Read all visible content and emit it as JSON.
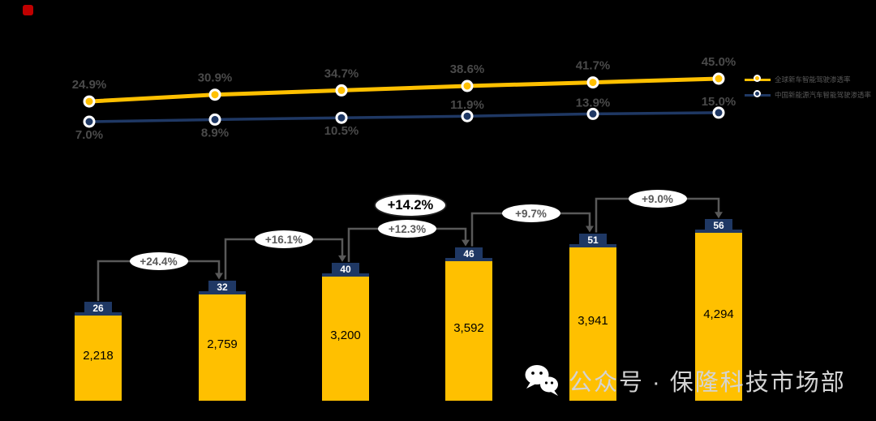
{
  "page": {
    "background": "#000000"
  },
  "colors": {
    "yellow": "#FFC000",
    "navy": "#1F3864",
    "point_label_gray": "#4A4A4A",
    "connector_gray": "#595959",
    "badge_bg": "#FFFFFF",
    "cap_text": "#FFFFFF",
    "bar_value_text": "#000000",
    "watermark_text": "#D4D4D4",
    "corner_marker_red": "#C00000"
  },
  "chart_data": [
    {
      "type": "line",
      "title": "",
      "grid": false,
      "axes_visible": false,
      "legend_position": "right",
      "series": [
        {
          "name": "全球新车智能驾驶渗透率",
          "color": "#FFC000",
          "values": [
            24.9,
            30.9,
            34.7,
            38.6,
            41.7,
            45.0
          ],
          "labels": [
            "24.9%",
            "30.9%",
            "34.7%",
            "38.6%",
            "41.7%",
            "45.0%"
          ],
          "label_positions": [
            "above",
            "above",
            "above",
            "above",
            "above",
            "above"
          ]
        },
        {
          "name": "中国新能源汽车智能驾驶渗透率",
          "color": "#1F3864",
          "values": [
            7.0,
            8.9,
            10.5,
            11.9,
            13.9,
            15.0
          ],
          "labels": [
            "7.0%",
            "8.9%",
            "10.5%",
            "11.9%",
            "13.9%",
            "15.0%"
          ],
          "label_positions": [
            "below",
            "below",
            "below",
            "above",
            "above",
            "above"
          ]
        }
      ]
    },
    {
      "type": "bar",
      "title": "",
      "grid": false,
      "axes_visible": false,
      "bar_color": "#FFC000",
      "cap_color": "#1F3864",
      "values": [
        2218,
        2759,
        3200,
        3592,
        3941,
        4294
      ],
      "value_labels": [
        "2,218",
        "2,759",
        "3,200",
        "3,592",
        "3,941",
        "4,294"
      ],
      "cap_labels": [
        "26",
        "32",
        "40",
        "46",
        "51",
        "56"
      ],
      "growth_labels": [
        "+24.4%",
        "+16.1%",
        "+12.3%",
        "+9.7%",
        "+9.0%"
      ],
      "cagr_label": "+14.2%"
    }
  ],
  "watermark": {
    "text": "公众号 · 保隆科技市场部",
    "icon": "wechat-icon"
  }
}
